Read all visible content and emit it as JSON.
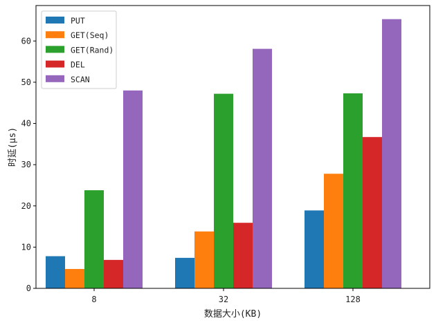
{
  "chart_data": {
    "type": "bar",
    "categories": [
      "8",
      "32",
      "128"
    ],
    "series": [
      {
        "name": "PUT",
        "color": "#1f77b4",
        "values": [
          7.8,
          7.4,
          18.9
        ]
      },
      {
        "name": "GET(Seq)",
        "color": "#ff7f0e",
        "values": [
          4.7,
          13.8,
          27.8
        ]
      },
      {
        "name": "GET(Rand)",
        "color": "#2ca02c",
        "values": [
          23.8,
          47.2,
          47.3
        ]
      },
      {
        "name": "DEL",
        "color": "#d62728",
        "values": [
          6.9,
          15.9,
          36.7
        ]
      },
      {
        "name": "SCAN",
        "color": "#9467bd",
        "values": [
          48.0,
          58.1,
          65.3
        ]
      }
    ],
    "xlabel": "数据大小(KB)",
    "ylabel": "时延(μs)",
    "ylim": [
      0,
      68.6
    ],
    "yticks": [
      0,
      10,
      20,
      30,
      40,
      50,
      60
    ],
    "legend_position": "top-left",
    "grid": false
  }
}
